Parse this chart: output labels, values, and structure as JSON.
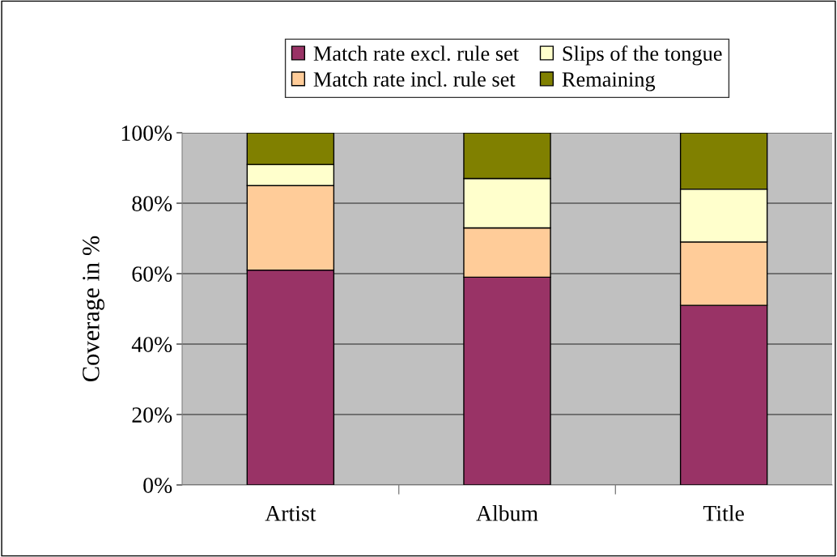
{
  "chart_data": {
    "type": "bar",
    "stacked": true,
    "ylabel": "Coverage in %",
    "categories": [
      "Artist",
      "Album",
      "Title"
    ],
    "series": [
      {
        "name": "Match rate excl. rule set",
        "color": "#993366",
        "values": [
          61,
          59,
          51
        ]
      },
      {
        "name": "Match rate incl. rule set",
        "color": "#ffcc99",
        "values": [
          24,
          14,
          18
        ]
      },
      {
        "name": "Slips of the tongue",
        "color": "#ffffcc",
        "values": [
          6,
          14,
          15
        ]
      },
      {
        "name": "Remaining",
        "color": "#808000",
        "values": [
          9,
          13,
          16
        ]
      }
    ],
    "ylim": [
      0,
      100
    ],
    "yticks": [
      {
        "value": 0,
        "label": "0%"
      },
      {
        "value": 20,
        "label": "20%"
      },
      {
        "value": 40,
        "label": "40%"
      },
      {
        "value": 60,
        "label": "60%"
      },
      {
        "value": 80,
        "label": "80%"
      },
      {
        "value": 100,
        "label": "100%"
      }
    ],
    "grid": "y",
    "legend": "top"
  }
}
